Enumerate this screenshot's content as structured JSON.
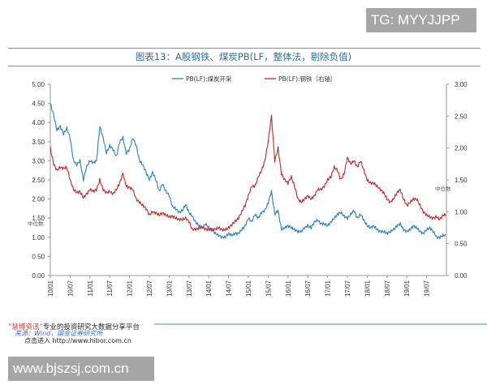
{
  "watermark_top": "TG: MYYJJPP",
  "watermark_bottom": "www.bjszsj.com.cn",
  "footer": {
    "line1_brand": "“慧博资讯”",
    "line1_rest": "专业的投资研究大数据分享平台",
    "line2": "来源：Wind，国金证券研究所",
    "line3": "点击进入 http://www.hibor.com.cn"
  },
  "colors": {
    "coal": "#2e7fb8",
    "steel": "#c0272d",
    "title": "#2a6f9e",
    "axis": "#999999"
  },
  "chart_data": {
    "type": "line",
    "title": "图表13：A股钢铁、煤炭PB(LF，整体法，剔除负值)",
    "median_label": "中位数",
    "left_axis": {
      "ylim": [
        0,
        5
      ],
      "ticks": [
        "0.00",
        "0.50",
        "1.00",
        "1.50",
        "2.00",
        "2.50",
        "3.00",
        "3.50",
        "4.00",
        "4.50",
        "5.00"
      ]
    },
    "right_axis": {
      "ylim": [
        0,
        3
      ],
      "ticks": [
        "0.00",
        "0.50",
        "1.00",
        "1.50",
        "2.00",
        "2.50",
        "3.00"
      ]
    },
    "x_ticks": [
      "10/01",
      "10/07",
      "11/01",
      "11/07",
      "12/01",
      "12/07",
      "13/01",
      "13/07",
      "14/01",
      "14/07",
      "15/01",
      "15/07",
      "16/01",
      "16/07",
      "17/01",
      "17/07",
      "18/01",
      "18/07",
      "19/01",
      "19/07"
    ],
    "x_range_months": [
      0,
      120
    ],
    "left_median": 1.4,
    "right_median": 1.35,
    "series": [
      {
        "name": "PB(LF):煤炭开采",
        "axis": "left",
        "x_months": [
          0,
          1,
          2,
          3,
          4,
          5,
          6,
          7,
          8,
          9,
          10,
          11,
          12,
          13,
          14,
          15,
          16,
          17,
          18,
          19,
          20,
          21,
          22,
          23,
          24,
          25,
          26,
          27,
          28,
          29,
          30,
          31,
          32,
          33,
          34,
          35,
          36,
          37,
          38,
          39,
          40,
          41,
          42,
          43,
          44,
          45,
          46,
          47,
          48,
          49,
          50,
          51,
          52,
          53,
          54,
          55,
          56,
          57,
          58,
          59,
          60,
          61,
          62,
          63,
          64,
          65,
          66,
          67,
          68,
          69,
          70,
          71,
          72,
          73,
          74,
          75,
          76,
          77,
          78,
          79,
          80,
          81,
          82,
          83,
          84,
          85,
          86,
          87,
          88,
          89,
          90,
          91,
          92,
          93,
          94,
          95,
          96,
          97,
          98,
          99,
          100,
          101,
          102,
          103,
          104,
          105,
          106,
          107,
          108,
          109,
          110,
          111,
          112,
          113,
          114,
          115,
          116,
          117,
          118,
          119
        ],
        "values": [
          4.5,
          4.2,
          3.8,
          3.9,
          3.7,
          3.85,
          3.6,
          3.0,
          2.9,
          3.0,
          2.5,
          2.85,
          3.0,
          2.95,
          3.0,
          3.9,
          3.6,
          3.2,
          3.4,
          3.3,
          3.1,
          3.5,
          3.6,
          3.2,
          3.3,
          3.6,
          3.4,
          3.0,
          2.9,
          2.7,
          2.5,
          2.7,
          2.5,
          2.2,
          2.4,
          2.2,
          2.1,
          1.8,
          1.75,
          1.65,
          1.7,
          1.85,
          1.65,
          1.55,
          1.4,
          1.3,
          1.25,
          1.35,
          1.25,
          1.2,
          1.1,
          1.05,
          1.0,
          1.0,
          1.1,
          1.05,
          1.1,
          1.1,
          1.2,
          1.3,
          1.5,
          1.4,
          1.6,
          1.5,
          1.65,
          1.7,
          1.9,
          2.2,
          1.6,
          1.7,
          1.2,
          1.25,
          1.3,
          1.25,
          1.2,
          1.15,
          1.15,
          1.25,
          1.3,
          1.25,
          1.4,
          1.45,
          1.35,
          1.35,
          1.3,
          1.4,
          1.5,
          1.6,
          1.65,
          1.55,
          1.5,
          1.6,
          1.7,
          1.5,
          1.6,
          1.45,
          1.3,
          1.25,
          1.3,
          1.2,
          1.15,
          1.15,
          1.1,
          1.15,
          1.2,
          1.3,
          1.35,
          1.2,
          1.15,
          1.2,
          1.3,
          1.25,
          1.15,
          1.1,
          1.2,
          1.25,
          1.15,
          1.0,
          1.0,
          1.05
        ]
      },
      {
        "name": "PB(LF):钢铁（右轴）",
        "axis": "right",
        "x_months": [
          0,
          1,
          2,
          3,
          4,
          5,
          6,
          7,
          8,
          9,
          10,
          11,
          12,
          13,
          14,
          15,
          16,
          17,
          18,
          19,
          20,
          21,
          22,
          23,
          24,
          25,
          26,
          27,
          28,
          29,
          30,
          31,
          32,
          33,
          34,
          35,
          36,
          37,
          38,
          39,
          40,
          41,
          42,
          43,
          44,
          45,
          46,
          47,
          48,
          49,
          50,
          51,
          52,
          53,
          54,
          55,
          56,
          57,
          58,
          59,
          60,
          61,
          62,
          63,
          64,
          65,
          66,
          67,
          68,
          69,
          70,
          71,
          72,
          73,
          74,
          75,
          76,
          77,
          78,
          79,
          80,
          81,
          82,
          83,
          84,
          85,
          86,
          87,
          88,
          89,
          90,
          91,
          92,
          93,
          94,
          95,
          96,
          97,
          98,
          99,
          100,
          101,
          102,
          103,
          104,
          105,
          106,
          107,
          108,
          109,
          110,
          111,
          112,
          113,
          114,
          115,
          116,
          117,
          118,
          119
        ],
        "values": [
          2.0,
          1.75,
          1.65,
          1.7,
          1.68,
          1.7,
          1.5,
          1.35,
          1.3,
          1.32,
          1.22,
          1.28,
          1.35,
          1.32,
          1.35,
          1.5,
          1.35,
          1.3,
          1.32,
          1.28,
          1.35,
          1.45,
          1.6,
          1.4,
          1.38,
          1.35,
          1.2,
          1.15,
          1.1,
          1.05,
          0.95,
          1.0,
          0.98,
          0.95,
          0.98,
          0.95,
          0.92,
          0.93,
          0.9,
          0.88,
          0.88,
          0.9,
          0.85,
          0.72,
          0.73,
          0.74,
          0.76,
          0.73,
          0.72,
          0.72,
          0.73,
          0.75,
          0.72,
          0.72,
          0.75,
          0.8,
          0.85,
          0.9,
          1.0,
          1.1,
          1.25,
          1.4,
          1.4,
          1.55,
          1.65,
          1.8,
          2.1,
          2.5,
          1.8,
          2.0,
          1.6,
          1.5,
          1.45,
          1.55,
          1.4,
          1.2,
          1.15,
          1.2,
          1.25,
          1.2,
          1.25,
          1.35,
          1.35,
          1.4,
          1.5,
          1.55,
          1.7,
          1.65,
          1.5,
          1.6,
          1.85,
          1.75,
          1.8,
          1.7,
          1.8,
          1.65,
          1.5,
          1.45,
          1.45,
          1.4,
          1.35,
          1.3,
          1.2,
          1.15,
          1.2,
          1.3,
          1.35,
          1.2,
          1.1,
          1.15,
          1.2,
          1.2,
          1.1,
          1.0,
          0.95,
          0.92,
          0.9,
          0.92,
          0.88,
          0.95
        ]
      }
    ]
  }
}
